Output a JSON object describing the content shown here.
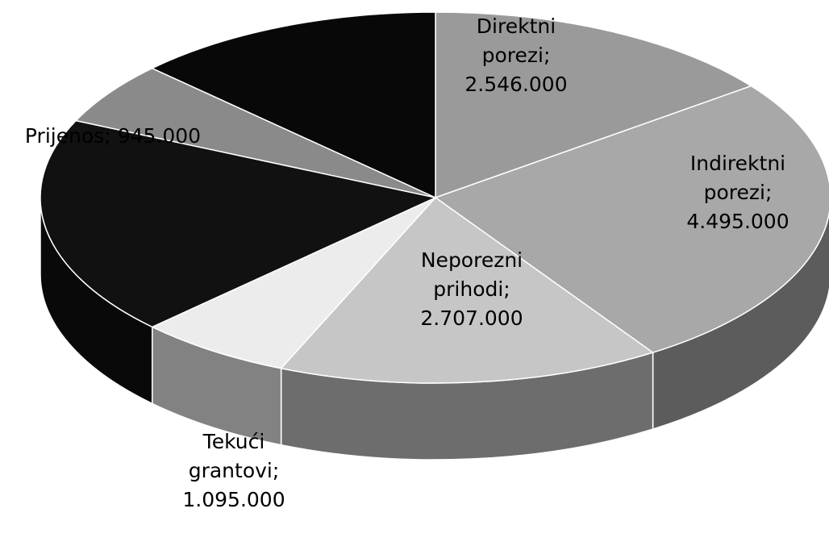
{
  "chart_data": {
    "type": "pie",
    "categories": [
      "Direktni porezi;",
      "Indirektni porezi;",
      "Neporezni prihodi;",
      "Tekući grantovi;",
      null,
      "Prijenos;",
      null
    ],
    "values": [
      2546000,
      4495000,
      2707000,
      1095000,
      3300000,
      945000,
      2200000
    ],
    "value_labels": [
      "2.546.000",
      "4.495.000",
      "2.707.000",
      "1.095.000",
      null,
      "945.000",
      null
    ],
    "colors": [
      "#9a9a9a",
      "#a8a8a8",
      "#c6c6c6",
      "#ececec",
      "#111111",
      "#8a8a8a",
      "#080808"
    ]
  }
}
